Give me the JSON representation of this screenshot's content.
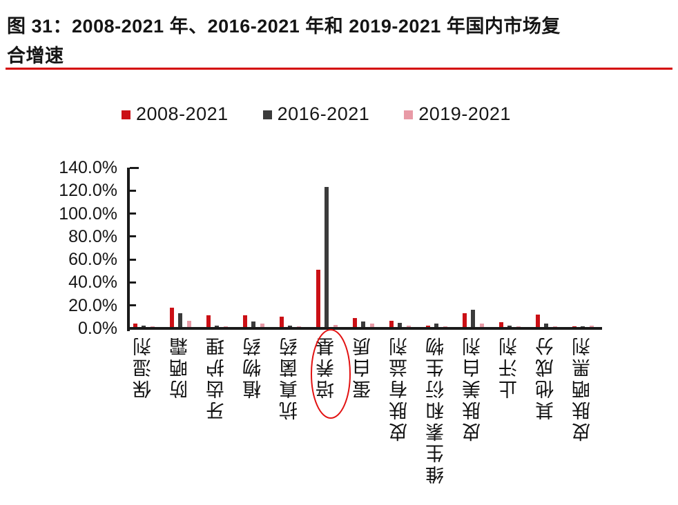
{
  "figure": {
    "title_line1": "图 31：2008-2021 年、2016-2021 年和 2019-2021 年国内市场复",
    "title_line2": "合增速",
    "rule_color": "#d40000"
  },
  "chart_data": {
    "type": "bar",
    "title": "2008-2021 年、2016-2021 年和 2019-2021 年国内市场复合增速",
    "xlabel": "",
    "ylabel": "",
    "ylim": [
      0,
      140
    ],
    "y_ticks": [
      "0.0%",
      "20.0%",
      "40.0%",
      "60.0%",
      "80.0%",
      "100.0%",
      "120.0%",
      "140.0%"
    ],
    "grid": false,
    "legend_position": "top",
    "categories": [
      "保湿剂",
      "防晒霜",
      "牙齿护理",
      "植物药",
      "抗真菌药",
      "培养基",
      "蛋白质",
      "皮肤有益剂",
      "维生素和衍生物",
      "皮肤美白剂",
      "止汗剂",
      "其他成分",
      "皮肤晒黑剂"
    ],
    "series": [
      {
        "name": "2008-2021",
        "color": "#cb1016",
        "values": [
          3,
          17,
          10,
          10,
          9,
          50,
          8,
          5.5,
          1,
          12,
          4,
          11,
          0.2
        ]
      },
      {
        "name": "2016-2021",
        "color": "#3b3b3b",
        "values": [
          1.5,
          12,
          1.5,
          5,
          1,
          122,
          5,
          3.5,
          3,
          15,
          1,
          3,
          0.2
        ]
      },
      {
        "name": "2019-2021",
        "color": "#e89aa6",
        "values": [
          0.8,
          5.5,
          0.5,
          3,
          0.5,
          2,
          3,
          1,
          0.6,
          3,
          0.2,
          0.3,
          1.3
        ]
      }
    ],
    "annotation": {
      "type": "ellipse",
      "target_category": "培养基",
      "color": "#e21212"
    }
  }
}
